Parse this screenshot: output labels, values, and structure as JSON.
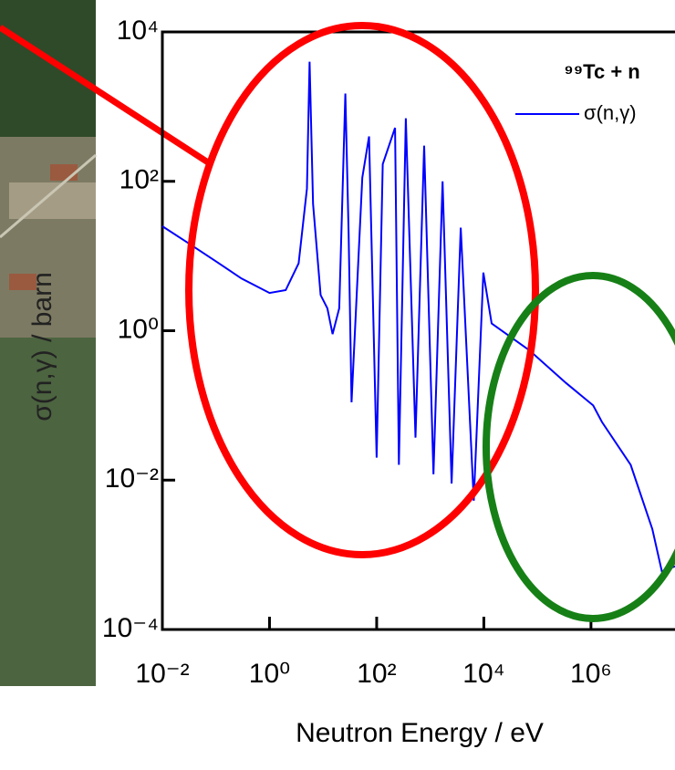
{
  "chart_data": {
    "type": "line",
    "title": "⁹⁹Tc + n",
    "xlabel": "Neutron Energy / eV",
    "ylabel": "σ(n,γ) / barn",
    "xscale": "log",
    "yscale": "log",
    "xlim": [
      0.01,
      37000000
    ],
    "ylim": [
      0.0001,
      10000
    ],
    "xticks": [
      {
        "value": 0.01,
        "label": "10⁻²"
      },
      {
        "value": 1,
        "label": "10⁰"
      },
      {
        "value": 100,
        "label": "10²"
      },
      {
        "value": 10000,
        "label": "10⁴"
      },
      {
        "value": 1000000,
        "label": "10⁶"
      }
    ],
    "yticks": [
      {
        "value": 0.0001,
        "label": "10⁻⁴"
      },
      {
        "value": 0.01,
        "label": "10⁻²"
      },
      {
        "value": 1,
        "label": "10⁰"
      },
      {
        "value": 100,
        "label": "10²"
      },
      {
        "value": 10000,
        "label": "10⁴"
      }
    ],
    "legend": "top-right",
    "x": [
      0.01,
      0.03,
      0.1,
      0.3,
      1,
      2,
      3.5,
      5,
      5.6,
      6.5,
      9,
      12,
      15,
      20,
      26,
      30,
      34,
      54,
      72,
      100,
      130,
      220,
      260,
      350,
      530,
      770,
      1150,
      1700,
      2500,
      3700,
      6500,
      9800,
      14000,
      70000,
      340000,
      1100000,
      1600000,
      5500000,
      14000000,
      21000000,
      37000000
    ],
    "series": [
      {
        "name": "σ(n,γ)",
        "color": "#0000ff",
        "values": [
          25,
          15,
          8.5,
          5,
          3.2,
          3.5,
          8,
          80,
          4000,
          50,
          3,
          2,
          0.9,
          2,
          1500,
          20,
          0.11,
          112,
          400,
          0.02,
          170,
          520,
          0.016,
          700,
          0.037,
          300,
          0.012,
          100,
          0.009,
          24,
          0.0053,
          6,
          1.25,
          0.55,
          0.2,
          0.1,
          0.06,
          0.016,
          0.0022,
          0.0006,
          0.0007
        ]
      }
    ]
  }
}
